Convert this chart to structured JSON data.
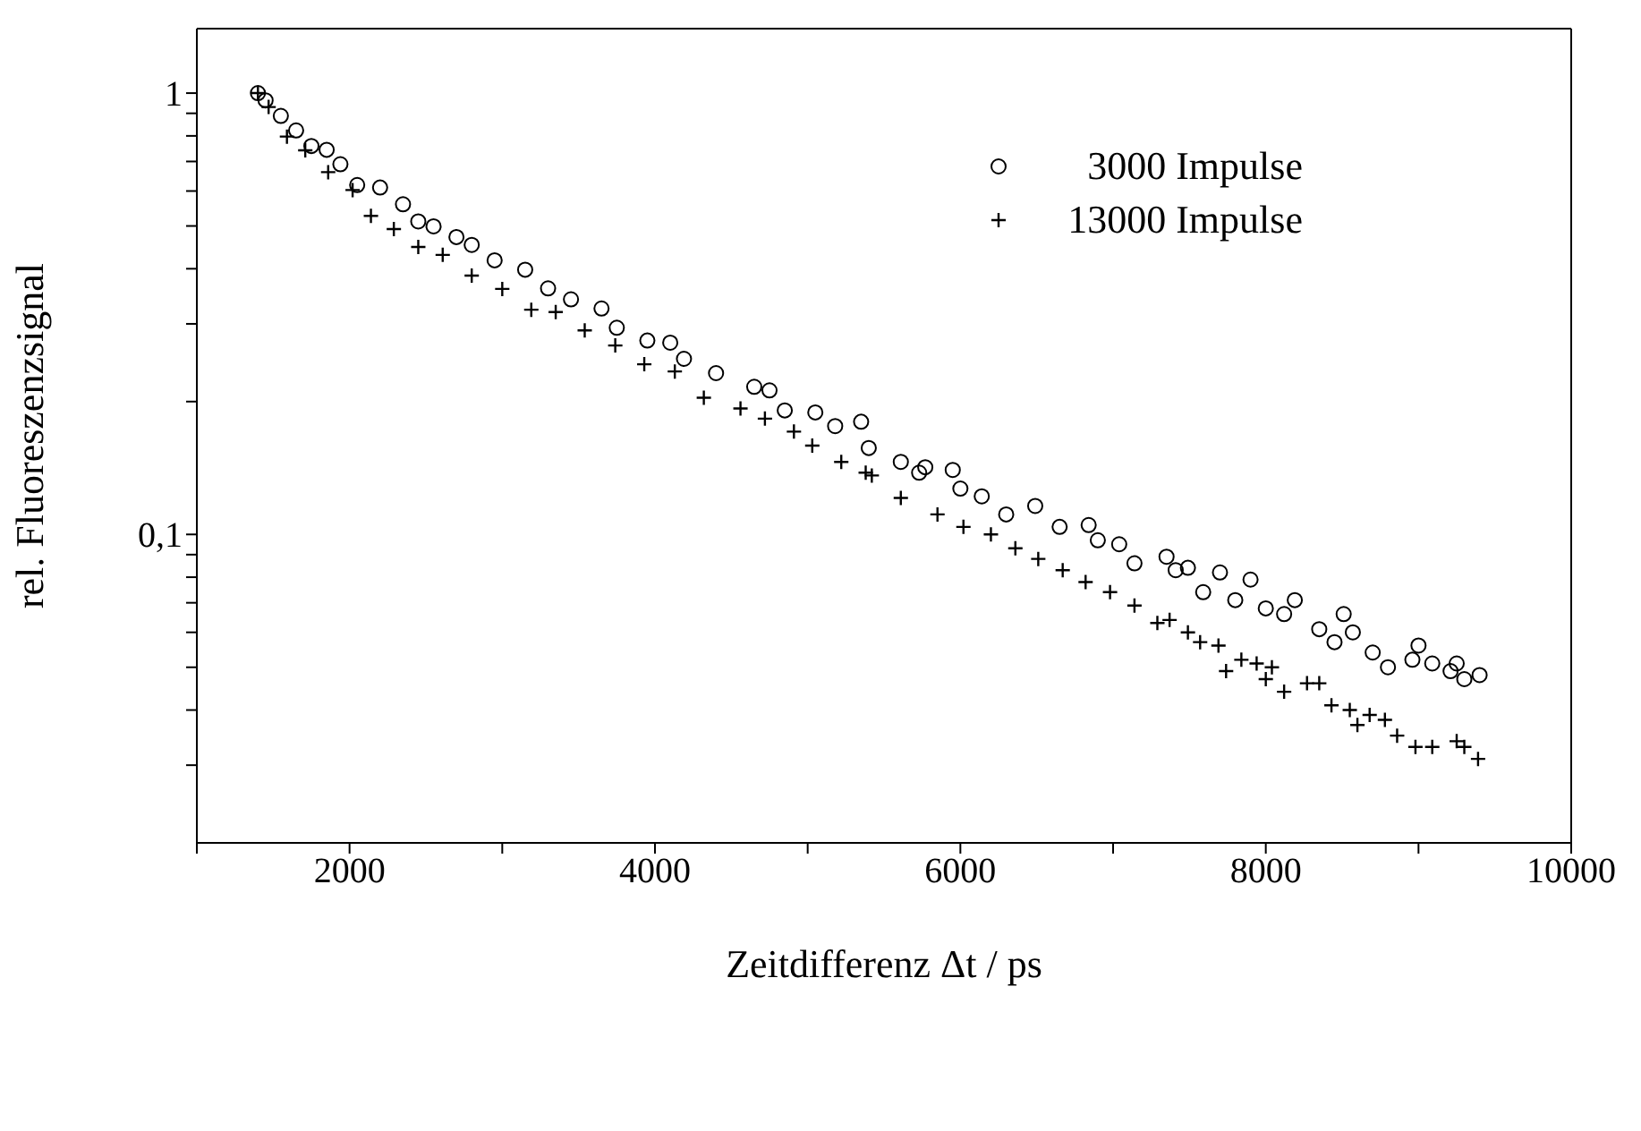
{
  "chart_data": {
    "type": "scatter",
    "xlabel": "Zeitdifferenz Δt / ps",
    "ylabel": "rel. Fluoreszenzsignal",
    "log": "y",
    "legend": "top right",
    "xlim": [
      1000,
      10000
    ],
    "xticks": [
      {
        "value": 1000,
        "label": null
      },
      2000,
      {
        "value": 3000,
        "label": null
      },
      4000,
      {
        "value": 5000,
        "label": null
      },
      6000,
      {
        "value": 7000,
        "label": null
      },
      8000,
      {
        "value": 9000,
        "label": null
      },
      10000
    ],
    "ylim": [
      0.02,
      1.4
    ],
    "yticks": [
      {
        "value": 0.03,
        "label": null
      },
      {
        "value": 0.04,
        "label": null
      },
      {
        "value": 0.05,
        "label": null
      },
      {
        "value": 0.06,
        "label": null
      },
      {
        "value": 0.07,
        "label": null
      },
      {
        "value": 0.08,
        "label": null
      },
      {
        "value": 0.09,
        "label": null
      },
      {
        "value": 0.1,
        "label": "0,1"
      },
      {
        "value": 0.2,
        "label": null
      },
      {
        "value": 0.3,
        "label": null
      },
      {
        "value": 0.4,
        "label": null
      },
      {
        "value": 0.5,
        "label": null
      },
      {
        "value": 0.6,
        "label": null
      },
      {
        "value": 0.7,
        "label": null
      },
      {
        "value": 0.8,
        "label": null
      },
      {
        "value": 0.9,
        "label": null
      },
      1
    ],
    "series": [
      {
        "name": "3000 Impulse",
        "color": "#000000",
        "marker": "circle",
        "x": [
          1400,
          1450,
          1550,
          1650,
          1750,
          1850,
          1940,
          2050,
          2200,
          2350,
          2450,
          2550,
          2700,
          2800,
          2950,
          3150,
          3300,
          3450,
          3650,
          3750,
          3950,
          4100,
          4190,
          4400,
          4650,
          4750,
          4850,
          5050,
          5180,
          5350,
          5400,
          5610,
          5730,
          5770,
          5950,
          6000,
          6140,
          6300,
          6490,
          6650,
          6840,
          6900,
          7040,
          7140,
          7350,
          7410,
          7490,
          7590,
          7700,
          7800,
          7900,
          8000,
          8120,
          8190,
          8350,
          8450,
          8510,
          8570,
          8700,
          8800,
          8960,
          9000,
          9090,
          9210,
          9250,
          9300,
          9400
        ],
        "values": [
          1.0,
          0.963,
          0.888,
          0.823,
          0.759,
          0.744,
          0.69,
          0.619,
          0.611,
          0.56,
          0.512,
          0.499,
          0.472,
          0.453,
          0.418,
          0.398,
          0.361,
          0.341,
          0.325,
          0.294,
          0.275,
          0.272,
          0.25,
          0.232,
          0.216,
          0.212,
          0.191,
          0.189,
          0.176,
          0.18,
          0.157,
          0.146,
          0.138,
          0.142,
          0.14,
          0.127,
          0.122,
          0.111,
          0.116,
          0.104,
          0.105,
          0.097,
          0.095,
          0.086,
          0.089,
          0.083,
          0.084,
          0.074,
          0.082,
          0.071,
          0.079,
          0.068,
          0.066,
          0.071,
          0.061,
          0.057,
          0.066,
          0.06,
          0.054,
          0.05,
          0.052,
          0.056,
          0.051,
          0.049,
          0.051,
          0.047,
          0.048
        ]
      },
      {
        "name": "13000 Impulse",
        "color": "#000000",
        "marker": "cross",
        "x": [
          1400,
          1470,
          1590,
          1710,
          1860,
          2020,
          2140,
          2290,
          2450,
          2610,
          2800,
          3000,
          3190,
          3350,
          3540,
          3740,
          3930,
          4130,
          4320,
          4560,
          4720,
          4910,
          5030,
          5220,
          5380,
          5420,
          5610,
          5850,
          6020,
          6200,
          6360,
          6510,
          6670,
          6820,
          6980,
          7140,
          7290,
          7370,
          7490,
          7570,
          7690,
          7740,
          7840,
          7940,
          8000,
          8040,
          8120,
          8270,
          8350,
          8430,
          8550,
          8600,
          8680,
          8780,
          8860,
          8980,
          9090,
          9250,
          9300,
          9390
        ],
        "values": [
          1.0,
          0.93,
          0.797,
          0.742,
          0.662,
          0.603,
          0.527,
          0.492,
          0.448,
          0.43,
          0.386,
          0.36,
          0.323,
          0.319,
          0.29,
          0.268,
          0.243,
          0.234,
          0.204,
          0.193,
          0.183,
          0.171,
          0.159,
          0.146,
          0.138,
          0.136,
          0.121,
          0.111,
          0.104,
          0.1,
          0.093,
          0.088,
          0.083,
          0.078,
          0.074,
          0.069,
          0.063,
          0.064,
          0.06,
          0.057,
          0.056,
          0.049,
          0.052,
          0.051,
          0.047,
          0.05,
          0.044,
          0.046,
          0.046,
          0.041,
          0.04,
          0.037,
          0.039,
          0.038,
          0.035,
          0.033,
          0.033,
          0.034,
          0.033,
          0.031
        ]
      }
    ]
  }
}
